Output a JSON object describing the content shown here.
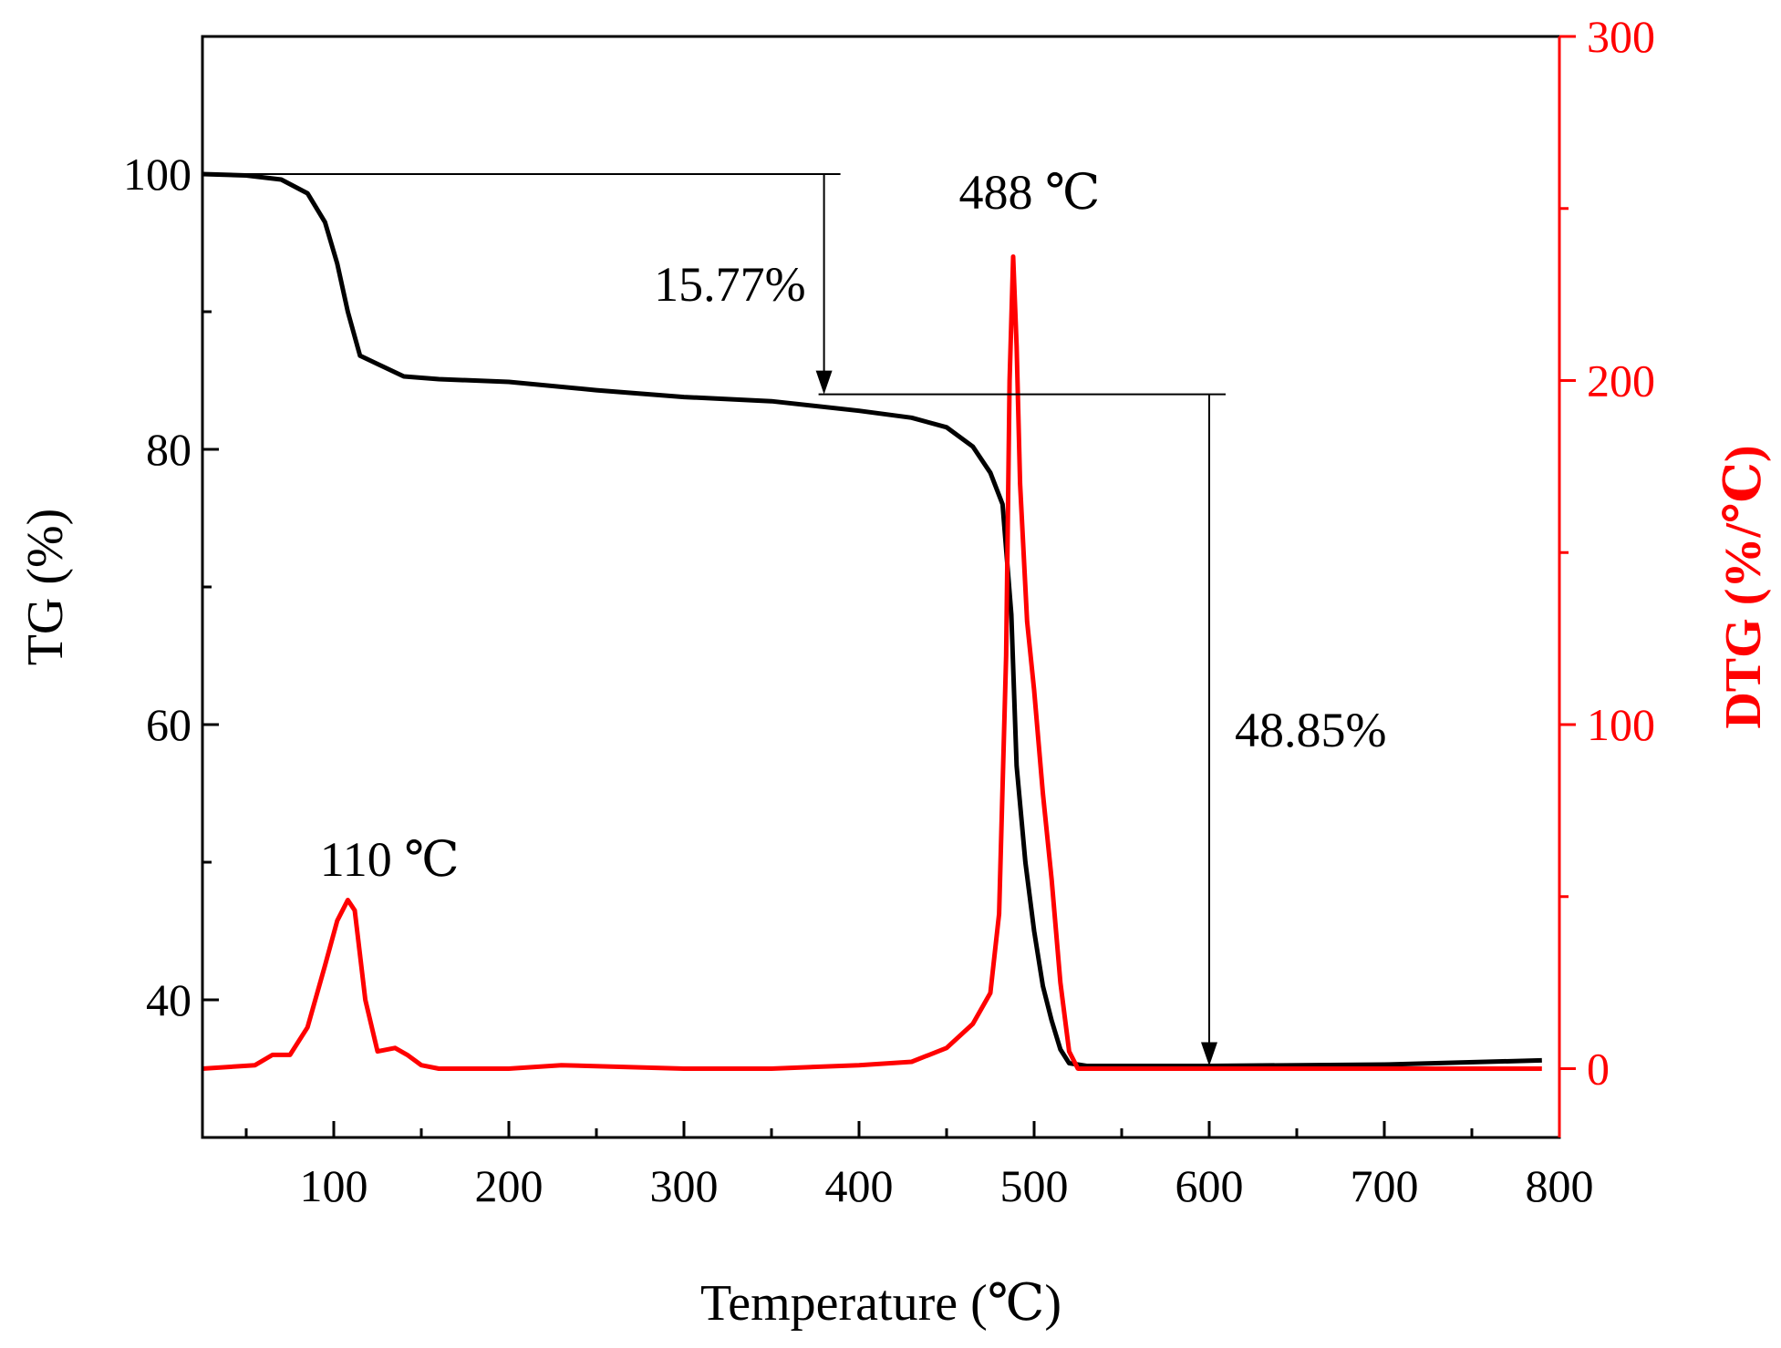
{
  "chart_data": {
    "type": "line",
    "xlabel": "Temperature (℃)",
    "ylabel_left": "TG (%)",
    "ylabel_right": "DTG (%/℃)",
    "xlim": [
      25,
      800
    ],
    "ylim_left": [
      30,
      110
    ],
    "ylim_right": [
      -20,
      300
    ],
    "x_ticks": [
      100,
      200,
      300,
      400,
      500,
      600,
      700,
      800
    ],
    "y_left_ticks": [
      40,
      60,
      80,
      100
    ],
    "y_right_ticks": [
      0,
      100,
      200,
      300
    ],
    "colors": {
      "tg": "#000000",
      "dtg": "#ff0000"
    },
    "series": [
      {
        "name": "TG",
        "axis": "left",
        "color": "#000000",
        "x": [
          25,
          50,
          70,
          85,
          95,
          102,
          108,
          115,
          125,
          140,
          160,
          200,
          250,
          300,
          350,
          400,
          430,
          450,
          465,
          475,
          482,
          487,
          490,
          495,
          500,
          505,
          510,
          515,
          520,
          530,
          600,
          700,
          790
        ],
        "y": [
          100,
          99.9,
          99.6,
          98.6,
          96.5,
          93.5,
          90.0,
          86.8,
          86.2,
          85.3,
          85.1,
          84.9,
          84.3,
          83.8,
          83.5,
          82.8,
          82.3,
          81.6,
          80.2,
          78.3,
          76.0,
          68.0,
          57.0,
          50.0,
          45.0,
          41.0,
          38.5,
          36.4,
          35.4,
          35.2,
          35.2,
          35.3,
          35.6
        ]
      },
      {
        "name": "DTG",
        "axis": "right",
        "color": "#ff0000",
        "x": [
          25,
          55,
          65,
          75,
          85,
          95,
          102,
          108,
          112,
          118,
          125,
          135,
          142,
          150,
          160,
          200,
          230,
          300,
          350,
          400,
          430,
          450,
          465,
          475,
          480,
          484,
          486,
          488,
          490,
          492,
          496,
          500,
          505,
          510,
          515,
          520,
          525,
          530,
          600,
          700,
          790
        ],
        "y": [
          0,
          1,
          4,
          4,
          12,
          30,
          43,
          49,
          46,
          20,
          5,
          6,
          4,
          1,
          0,
          0,
          1,
          0,
          0,
          1,
          2,
          6,
          13,
          22,
          45,
          120,
          200,
          236,
          210,
          170,
          130,
          110,
          80,
          55,
          25,
          5,
          0,
          0,
          0,
          0,
          0
        ]
      }
    ],
    "annotations": [
      {
        "text": "15.77%",
        "x": 380,
        "from_tg": 100,
        "to_tg": 84
      },
      {
        "text": "48.85%",
        "x": 600,
        "from_tg": 84,
        "to_tg": 35.2
      },
      {
        "text": "488 ℃",
        "x": 488,
        "tg_anchor": 100
      },
      {
        "text": "110 ℃",
        "x": 110,
        "tg_anchor": 49
      }
    ]
  }
}
